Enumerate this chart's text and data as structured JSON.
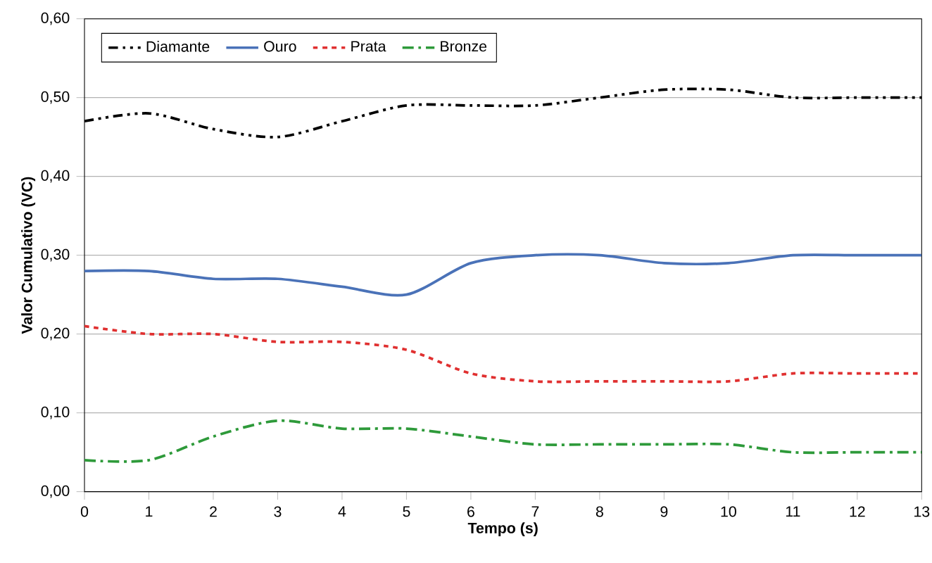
{
  "chart_data": {
    "type": "line",
    "xlabel": "Tempo (s)",
    "ylabel": "Valor Cumulativo (VC)",
    "x": [
      0,
      1,
      2,
      3,
      4,
      5,
      6,
      7,
      8,
      9,
      10,
      11,
      12,
      13
    ],
    "series": [
      {
        "name": "Diamante",
        "color": "#000000",
        "line_style": "dashdotdot",
        "values": [
          0.47,
          0.48,
          0.46,
          0.45,
          0.47,
          0.49,
          0.49,
          0.49,
          0.5,
          0.51,
          0.51,
          0.5,
          0.5,
          0.5
        ]
      },
      {
        "name": "Ouro",
        "color": "#4a72b8",
        "line_style": "solid",
        "values": [
          0.28,
          0.28,
          0.27,
          0.27,
          0.26,
          0.25,
          0.29,
          0.3,
          0.3,
          0.29,
          0.29,
          0.3,
          0.3,
          0.3
        ]
      },
      {
        "name": "Prata",
        "color": "#e03030",
        "line_style": "dotted",
        "values": [
          0.21,
          0.2,
          0.2,
          0.19,
          0.19,
          0.18,
          0.15,
          0.14,
          0.14,
          0.14,
          0.14,
          0.15,
          0.15,
          0.15
        ]
      },
      {
        "name": "Bronze",
        "color": "#2e9a3a",
        "line_style": "dashdot",
        "values": [
          0.04,
          0.04,
          0.07,
          0.09,
          0.08,
          0.08,
          0.07,
          0.06,
          0.06,
          0.06,
          0.06,
          0.05,
          0.05,
          0.05
        ]
      }
    ],
    "xlim": [
      0,
      13
    ],
    "xticks": [
      0,
      1,
      2,
      3,
      4,
      5,
      6,
      7,
      8,
      9,
      10,
      11,
      12,
      13
    ],
    "ylim": [
      0,
      0.6
    ],
    "yticks": [
      {
        "value": 0,
        "label": "0,00"
      },
      {
        "value": 0.1,
        "label": "0,10"
      },
      {
        "value": 0.2,
        "label": "0,20"
      },
      {
        "value": 0.3,
        "label": "0,30"
      },
      {
        "value": 0.4,
        "label": "0,40"
      },
      {
        "value": 0.5,
        "label": "0,50"
      },
      {
        "value": 0.6,
        "label": "0,60"
      }
    ],
    "grid": "y",
    "legend": "top left",
    "marker": "none"
  }
}
